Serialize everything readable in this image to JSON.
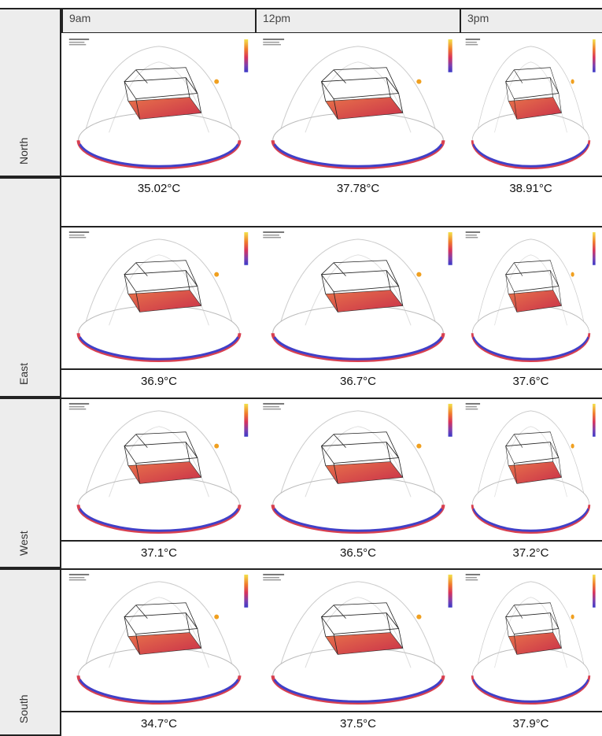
{
  "header": {
    "columns": [
      "9am",
      "12pm",
      "3pm"
    ]
  },
  "rows": [
    {
      "label": "North",
      "temps": [
        "35.02°C",
        "37.78°C",
        "38.91°C"
      ]
    },
    {
      "label": "East",
      "temps": [
        "36.9°C",
        "36.7°C",
        "37.6°C"
      ]
    },
    {
      "label": "West",
      "temps": [
        "37.1°C",
        "36.5°C",
        "37.2°C"
      ]
    },
    {
      "label": "South",
      "temps": [
        "34.7°C",
        "37.5°C",
        "37.9°C"
      ]
    }
  ]
}
